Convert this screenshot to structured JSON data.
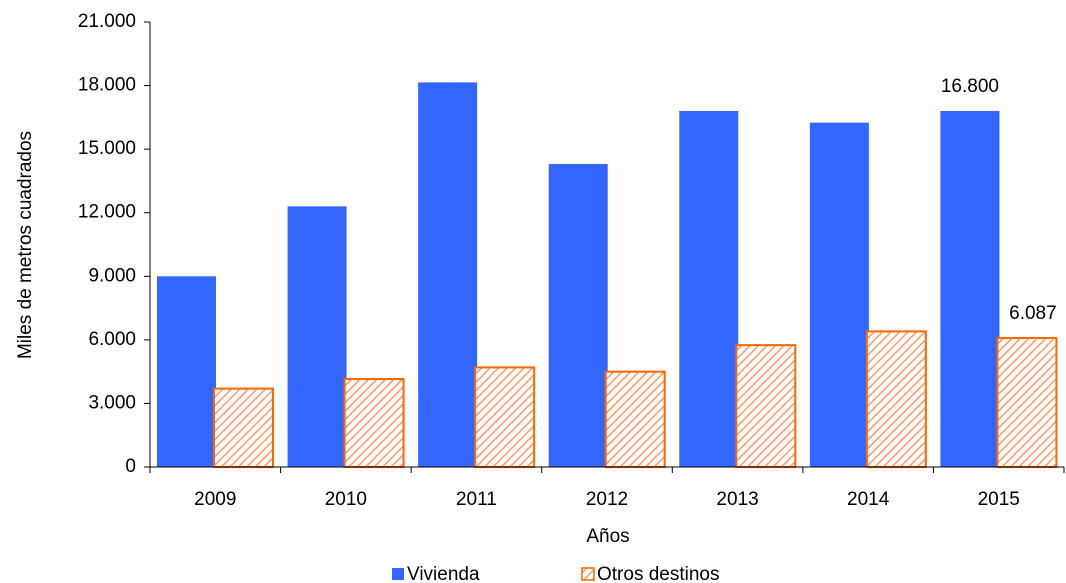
{
  "chart_data": {
    "type": "bar",
    "y_label": "Miles de metros cuadrados",
    "x_label": "Años",
    "categories": [
      "2009",
      "2010",
      "2011",
      "2012",
      "2013",
      "2014",
      "2015"
    ],
    "series": [
      {
        "name": "Vivienda",
        "color": "#3366ff",
        "values": [
          9000,
          12300,
          18150,
          14300,
          16800,
          16250,
          16800
        ],
        "value_labels": [
          null,
          null,
          null,
          null,
          null,
          null,
          "16.800"
        ]
      },
      {
        "name": "Otros destinos",
        "color": "#ff6600",
        "pattern": "hatch",
        "values": [
          3700,
          4150,
          4700,
          4500,
          5750,
          6400,
          6087
        ],
        "value_labels": [
          null,
          null,
          null,
          null,
          null,
          null,
          "6.087"
        ]
      }
    ],
    "ylim": [
      0,
      21000
    ],
    "yticks": [
      0,
      {
        "value": 3000,
        "label": "3.000"
      },
      {
        "value": 6000,
        "label": "6.000"
      },
      {
        "value": 9000,
        "label": "9.000"
      },
      {
        "value": 12000,
        "label": "12.000"
      },
      {
        "value": 15000,
        "label": "15.000"
      },
      {
        "value": 18000,
        "label": "18.000"
      },
      {
        "value": 21000,
        "label": "21.000"
      }
    ],
    "grid": false,
    "legend": "bottom"
  }
}
